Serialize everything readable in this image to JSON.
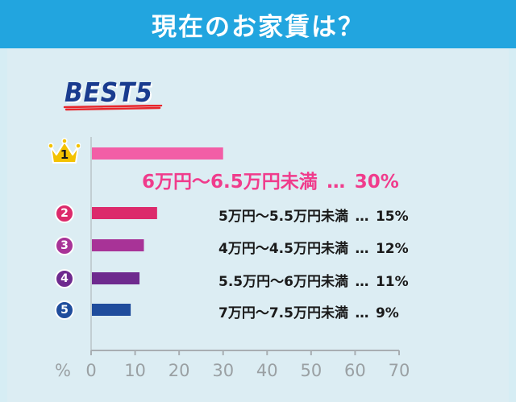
{
  "header": {
    "title": "現在のお家賃は？"
  },
  "badge": {
    "text": "BEST5"
  },
  "colors": {
    "header_bg": "#22a5df",
    "panel_bg": "#dcedf3",
    "badge_text": "#1a3c8f",
    "badge_underline": "#e8262b",
    "crown": "#f3c200",
    "axis": "#a8aeb2"
  },
  "chart_data": {
    "type": "bar",
    "orientation": "horizontal",
    "xlim": [
      0,
      70
    ],
    "xticks": [
      "0",
      "10",
      "20",
      "30",
      "40",
      "50",
      "60",
      "70"
    ],
    "xunit": "%",
    "grid": false,
    "series": [
      {
        "ranks": [
          "1",
          "2",
          "3",
          "4",
          "5"
        ],
        "categories": [
          "6万円～6.5万円未満",
          "5万円～5.5万円未満",
          "4万円～4.5万円未満",
          "5.5万円～6万円未満",
          "7万円～7.5万円未満"
        ],
        "values": [
          30,
          15,
          12,
          11,
          9
        ],
        "value_labels": [
          "30%",
          "15%",
          "12%",
          "11%",
          "9%"
        ],
        "colors": [
          "#f25ea6",
          "#dc2a6b",
          "#a83397",
          "#6e2a8e",
          "#1f4c9c"
        ]
      }
    ]
  },
  "labels": {
    "sep_first": "…",
    "sep_rest": "…"
  }
}
